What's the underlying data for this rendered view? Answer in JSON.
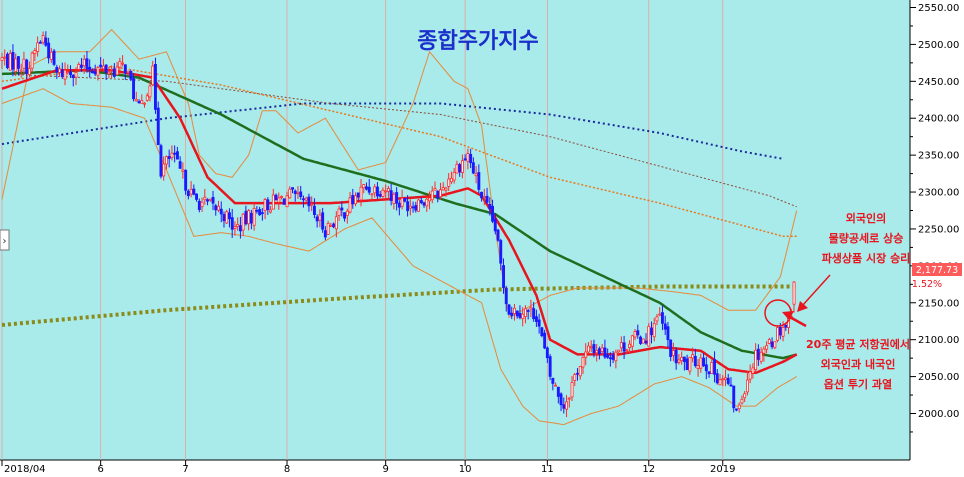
{
  "chart_data": {
    "type": "candlestick",
    "title": "종합주가지수",
    "y_ticks": [
      2000,
      2050,
      2100,
      2150,
      2200,
      2250,
      2300,
      2350,
      2400,
      2450,
      2500,
      2550
    ],
    "y_tick_labels": [
      "2000.00",
      "2050.00",
      "2100.00",
      "2150.00",
      "2200.00",
      "2250.00",
      "2300.00",
      "2350.00",
      "2400.00",
      "2450.00",
      "2500.00",
      "2550.00"
    ],
    "ylim": [
      1950,
      2560
    ],
    "x_labels": [
      "2018/04",
      "6",
      "7",
      "8",
      "9",
      "10",
      "11",
      "12",
      "2019"
    ],
    "x_label_index": [
      0,
      36,
      67,
      104,
      140,
      169,
      199,
      236,
      263
    ],
    "n_bars": 290,
    "last_price_label": "2,177.73",
    "last_change_label": "1.52%",
    "anchors": [
      [
        0,
        2480
      ],
      [
        10,
        2470
      ],
      [
        13,
        2500
      ],
      [
        15,
        2510
      ],
      [
        20,
        2460
      ],
      [
        30,
        2470
      ],
      [
        40,
        2465
      ],
      [
        45,
        2470
      ],
      [
        50,
        2410
      ],
      [
        55,
        2460
      ],
      [
        58,
        2330
      ],
      [
        62,
        2350
      ],
      [
        70,
        2290
      ],
      [
        80,
        2275
      ],
      [
        85,
        2250
      ],
      [
        95,
        2280
      ],
      [
        105,
        2295
      ],
      [
        112,
        2280
      ],
      [
        118,
        2250
      ],
      [
        125,
        2275
      ],
      [
        132,
        2305
      ],
      [
        140,
        2305
      ],
      [
        145,
        2285
      ],
      [
        150,
        2285
      ],
      [
        160,
        2300
      ],
      [
        165,
        2330
      ],
      [
        170,
        2350
      ],
      [
        175,
        2295
      ],
      [
        180,
        2250
      ],
      [
        183,
        2175
      ],
      [
        185,
        2140
      ],
      [
        190,
        2140
      ],
      [
        195,
        2135
      ],
      [
        200,
        2050
      ],
      [
        205,
        2010
      ],
      [
        210,
        2060
      ],
      [
        215,
        2090
      ],
      [
        222,
        2080
      ],
      [
        230,
        2100
      ],
      [
        235,
        2105
      ],
      [
        240,
        2130
      ],
      [
        245,
        2075
      ],
      [
        250,
        2065
      ],
      [
        255,
        2075
      ],
      [
        260,
        2055
      ],
      [
        265,
        2040
      ],
      [
        268,
        2000
      ],
      [
        272,
        2050
      ],
      [
        275,
        2080
      ],
      [
        280,
        2095
      ],
      [
        284,
        2115
      ],
      [
        287,
        2125
      ],
      [
        290,
        2178
      ]
    ],
    "ma_20": [
      [
        0,
        2440
      ],
      [
        20,
        2465
      ],
      [
        40,
        2465
      ],
      [
        55,
        2455
      ],
      [
        65,
        2400
      ],
      [
        75,
        2320
      ],
      [
        85,
        2285
      ],
      [
        100,
        2285
      ],
      [
        120,
        2285
      ],
      [
        140,
        2290
      ],
      [
        160,
        2295
      ],
      [
        170,
        2305
      ],
      [
        175,
        2295
      ],
      [
        185,
        2235
      ],
      [
        195,
        2160
      ],
      [
        200,
        2100
      ],
      [
        210,
        2080
      ],
      [
        225,
        2080
      ],
      [
        240,
        2090
      ],
      [
        255,
        2085
      ],
      [
        265,
        2060
      ],
      [
        275,
        2055
      ],
      [
        285,
        2070
      ],
      [
        290,
        2080
      ]
    ],
    "ma_60": [
      [
        0,
        2460
      ],
      [
        30,
        2465
      ],
      [
        50,
        2455
      ],
      [
        80,
        2405
      ],
      [
        110,
        2345
      ],
      [
        140,
        2315
      ],
      [
        165,
        2285
      ],
      [
        180,
        2270
      ],
      [
        200,
        2220
      ],
      [
        220,
        2185
      ],
      [
        240,
        2150
      ],
      [
        255,
        2110
      ],
      [
        270,
        2085
      ],
      [
        285,
        2075
      ],
      [
        290,
        2080
      ]
    ],
    "ma_120": [
      [
        0,
        2450
      ],
      [
        40,
        2470
      ],
      [
        80,
        2445
      ],
      [
        120,
        2410
      ],
      [
        160,
        2375
      ],
      [
        200,
        2320
      ],
      [
        240,
        2285
      ],
      [
        270,
        2255
      ],
      [
        285,
        2240
      ],
      [
        290,
        2240
      ]
    ],
    "ma_240": [
      [
        0,
        2460
      ],
      [
        60,
        2450
      ],
      [
        120,
        2420
      ],
      [
        160,
        2405
      ],
      [
        200,
        2375
      ],
      [
        240,
        2335
      ],
      [
        280,
        2295
      ],
      [
        290,
        2280
      ]
    ],
    "ma_480": [
      [
        0,
        2365
      ],
      [
        60,
        2400
      ],
      [
        110,
        2420
      ],
      [
        160,
        2420
      ],
      [
        200,
        2405
      ],
      [
        240,
        2380
      ],
      [
        270,
        2355
      ],
      [
        285,
        2345
      ]
    ],
    "ma_long": [
      [
        0,
        2120
      ],
      [
        60,
        2140
      ],
      [
        120,
        2155
      ],
      [
        180,
        2168
      ],
      [
        240,
        2172
      ],
      [
        290,
        2172
      ]
    ],
    "bb_upper": [
      [
        0,
        2290
      ],
      [
        10,
        2470
      ],
      [
        20,
        2490
      ],
      [
        32,
        2490
      ],
      [
        40,
        2520
      ],
      [
        50,
        2480
      ],
      [
        60,
        2490
      ],
      [
        68,
        2420
      ],
      [
        72,
        2350
      ],
      [
        78,
        2325
      ],
      [
        84,
        2320
      ],
      [
        90,
        2350
      ],
      [
        95,
        2410
      ],
      [
        100,
        2410
      ],
      [
        108,
        2380
      ],
      [
        118,
        2400
      ],
      [
        130,
        2330
      ],
      [
        140,
        2340
      ],
      [
        150,
        2420
      ],
      [
        156,
        2490
      ],
      [
        165,
        2450
      ],
      [
        170,
        2440
      ],
      [
        175,
        2390
      ],
      [
        180,
        2250
      ],
      [
        185,
        2130
      ],
      [
        190,
        2140
      ],
      [
        195,
        2150
      ],
      [
        200,
        2160
      ],
      [
        210,
        2170
      ],
      [
        222,
        2170
      ],
      [
        232,
        2170
      ],
      [
        245,
        2165
      ],
      [
        255,
        2160
      ],
      [
        265,
        2140
      ],
      [
        275,
        2140
      ],
      [
        284,
        2185
      ],
      [
        290,
        2275
      ]
    ],
    "bb_lower": [
      [
        0,
        2420
      ],
      [
        15,
        2440
      ],
      [
        25,
        2420
      ],
      [
        40,
        2415
      ],
      [
        52,
        2400
      ],
      [
        60,
        2330
      ],
      [
        70,
        2240
      ],
      [
        80,
        2245
      ],
      [
        90,
        2240
      ],
      [
        100,
        2230
      ],
      [
        112,
        2220
      ],
      [
        125,
        2250
      ],
      [
        135,
        2265
      ],
      [
        150,
        2200
      ],
      [
        165,
        2170
      ],
      [
        175,
        2150
      ],
      [
        182,
        2060
      ],
      [
        190,
        2010
      ],
      [
        196,
        1990
      ],
      [
        205,
        1985
      ],
      [
        215,
        2000
      ],
      [
        225,
        2010
      ],
      [
        238,
        2040
      ],
      [
        248,
        2050
      ],
      [
        258,
        2035
      ],
      [
        268,
        2010
      ],
      [
        275,
        2010
      ],
      [
        283,
        2035
      ],
      [
        290,
        2050
      ]
    ],
    "annotations": [
      {
        "lines": [
          "외국인의",
          "물량공세로 상승",
          "파생상품 시장 승리"
        ]
      },
      {
        "lines": [
          "20주 평균 저항권에서",
          "외국인과 내국인",
          "옵션 투기 과열"
        ]
      }
    ]
  }
}
